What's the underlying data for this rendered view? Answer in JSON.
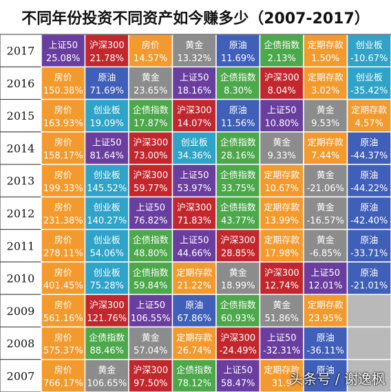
{
  "chart_data": {
    "type": "table",
    "title": "不同年份投资不同资产如今赚多少（2007-2017）",
    "colors": {
      "房价": "#F39A2E",
      "沪深300": "#C1272D",
      "黄金": "#8C8C8C",
      "原油": "#3F5FB8",
      "企债指数": "#4CA84B",
      "上证50": "#6A3E9F",
      "定期存款": "#F39A2E",
      "创业板": "#2FA3C8",
      "empty": "#B9B9B9",
      "year_bg": "#FFFFFF",
      "title_bg": "#FFFFFF"
    },
    "rows": [
      {
        "year": "2017",
        "cells": [
          {
            "asset": "上证50",
            "value": "25.08%"
          },
          {
            "asset": "沪深300",
            "value": "21.78%"
          },
          {
            "asset": "房价",
            "value": "14.57%"
          },
          {
            "asset": "黄金",
            "value": "13.32%"
          },
          {
            "asset": "原油",
            "value": "11.69%"
          },
          {
            "asset": "企债指数",
            "value": "2.13%"
          },
          {
            "asset": "定期存款",
            "value": "1.50%"
          },
          {
            "asset": "创业板",
            "value": "-10.67%"
          }
        ]
      },
      {
        "year": "2016",
        "cells": [
          {
            "asset": "房价",
            "value": "150.38%"
          },
          {
            "asset": "原油",
            "value": "71.69%"
          },
          {
            "asset": "黄金",
            "value": "23.65%"
          },
          {
            "asset": "上证50",
            "value": "18.16%"
          },
          {
            "asset": "企债指数",
            "value": "8.30%"
          },
          {
            "asset": "沪深300",
            "value": "8.04%"
          },
          {
            "asset": "定期存款",
            "value": "3.02%"
          },
          {
            "asset": "创业板",
            "value": "-35.42%"
          }
        ]
      },
      {
        "year": "2015",
        "cells": [
          {
            "asset": "房价",
            "value": "163.93%"
          },
          {
            "asset": "创业板",
            "value": "19.09%"
          },
          {
            "asset": "企债指数",
            "value": "17.87%"
          },
          {
            "asset": "沪深300",
            "value": "14.07%"
          },
          {
            "asset": "原油",
            "value": "11.56%"
          },
          {
            "asset": "上证50",
            "value": "10.80%"
          },
          {
            "asset": "黄金",
            "value": "9.53%"
          },
          {
            "asset": "定期存款",
            "value": "4.57%"
          }
        ]
      },
      {
        "year": "2014",
        "cells": [
          {
            "asset": "房价",
            "value": "158.17%"
          },
          {
            "asset": "上证50",
            "value": "81.64%"
          },
          {
            "asset": "沪深300",
            "value": "73.00%"
          },
          {
            "asset": "创业板",
            "value": "34.36%"
          },
          {
            "asset": "企债指数",
            "value": "28.16%"
          },
          {
            "asset": "黄金",
            "value": "9.33%"
          },
          {
            "asset": "定期存款",
            "value": "7.44%"
          },
          {
            "asset": "原油",
            "value": "-44.37%"
          }
        ]
      },
      {
        "year": "2013",
        "cells": [
          {
            "asset": "房价",
            "value": "199.33%"
          },
          {
            "asset": "创业板",
            "value": "145.52%"
          },
          {
            "asset": "沪深300",
            "value": "59.77%"
          },
          {
            "asset": "上证50",
            "value": "53.97%"
          },
          {
            "asset": "企债指数",
            "value": "33.75%"
          },
          {
            "asset": "定期存款",
            "value": "10.67%"
          },
          {
            "asset": "黄金",
            "value": "-21.06%"
          },
          {
            "asset": "原油",
            "value": "-44.22%"
          }
        ]
      },
      {
        "year": "2012",
        "cells": [
          {
            "asset": "房价",
            "value": "231.38%"
          },
          {
            "asset": "创业板",
            "value": "140.27%"
          },
          {
            "asset": "上证50",
            "value": "76.82%"
          },
          {
            "asset": "沪深300",
            "value": "71.83%"
          },
          {
            "asset": "企债指数",
            "value": "43.77%"
          },
          {
            "asset": "定期存款",
            "value": "13.99%"
          },
          {
            "asset": "黄金",
            "value": "-16.57%"
          },
          {
            "asset": "原油",
            "value": "-42.40%"
          }
        ]
      },
      {
        "year": "2011",
        "cells": [
          {
            "asset": "房价",
            "value": "278.11%"
          },
          {
            "asset": "创业板",
            "value": "54.06%"
          },
          {
            "asset": "企债指数",
            "value": "48.80%"
          },
          {
            "asset": "上证50",
            "value": "44.66%"
          },
          {
            "asset": "沪深300",
            "value": "28.85%"
          },
          {
            "asset": "定期存款",
            "value": "17.98%"
          },
          {
            "asset": "黄金",
            "value": "-6.85%"
          },
          {
            "asset": "原油",
            "value": "-33.71%"
          }
        ]
      },
      {
        "year": "2010",
        "cells": [
          {
            "asset": "房价",
            "value": "401.45%"
          },
          {
            "asset": "创业板",
            "value": "75.28%"
          },
          {
            "asset": "企债指数",
            "value": "59.84%"
          },
          {
            "asset": "定期存款",
            "value": "21.22%"
          },
          {
            "asset": "黄金",
            "value": "18.99%"
          },
          {
            "asset": "沪深300",
            "value": "12.74%"
          },
          {
            "asset": "上证50",
            "value": "12.01%"
          },
          {
            "asset": "原油",
            "value": "-21.01%"
          }
        ]
      },
      {
        "year": "2009",
        "cells": [
          {
            "asset": "房价",
            "value": "561.16%"
          },
          {
            "asset": "沪深300",
            "value": "121.76%"
          },
          {
            "asset": "上证50",
            "value": "106.55%"
          },
          {
            "asset": "原油",
            "value": "67.86%"
          },
          {
            "asset": "企债指数",
            "value": "60.93%"
          },
          {
            "asset": "黄金",
            "value": "51.86%"
          },
          {
            "asset": "定期存款",
            "value": "23.95%"
          },
          {
            "asset": "",
            "value": ""
          }
        ]
      },
      {
        "year": "2008",
        "cells": [
          {
            "asset": "房价",
            "value": "575.37%"
          },
          {
            "asset": "企债指数",
            "value": "88.46%"
          },
          {
            "asset": "黄金",
            "value": "57.04%"
          },
          {
            "asset": "定期存款",
            "value": "26.74%"
          },
          {
            "asset": "沪深300",
            "value": "-24.49%"
          },
          {
            "asset": "上证50",
            "value": "-32.31%"
          },
          {
            "asset": "原油",
            "value": "-36.11%"
          },
          {
            "asset": "",
            "value": ""
          }
        ]
      },
      {
        "year": "2007",
        "cells": [
          {
            "asset": "房价",
            "value": "766.17%"
          },
          {
            "asset": "黄金",
            "value": "106.65%"
          },
          {
            "asset": "沪深300",
            "value": "97.50%"
          },
          {
            "asset": "企债指数",
            "value": "78.12%"
          },
          {
            "asset": "上证50",
            "value": "58.47%"
          },
          {
            "asset": "定期存款",
            "value": "31.9"
          },
          {
            "asset": "原油",
            "value": ""
          },
          {
            "asset": "",
            "value": ""
          }
        ]
      }
    ]
  },
  "watermark": "头条号 / 谢逸枫"
}
